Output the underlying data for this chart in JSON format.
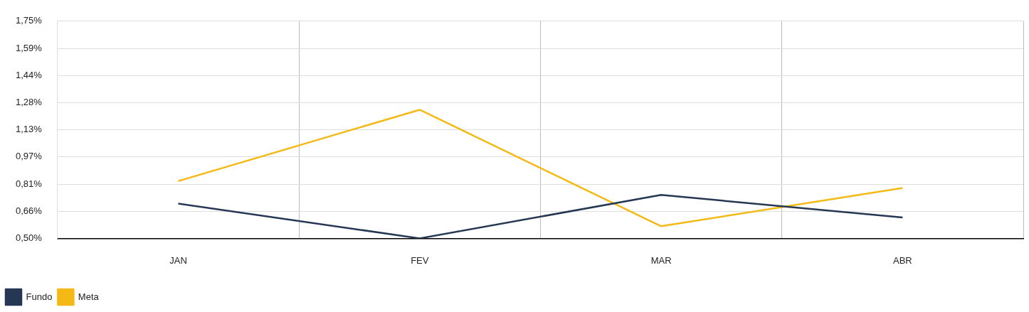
{
  "chart_data": {
    "type": "line",
    "categories": [
      "JAN",
      "FEV",
      "MAR",
      "ABR"
    ],
    "series": [
      {
        "name": "Fundo",
        "color": "#263754",
        "values": [
          0.7,
          0.5,
          0.75,
          0.62
        ]
      },
      {
        "name": "Meta",
        "color": "#f4b915",
        "values": [
          0.83,
          1.24,
          0.57,
          0.79
        ]
      }
    ],
    "ylim": [
      0.5,
      1.75
    ],
    "yticks": [
      {
        "value": 0.5,
        "label": "0,50%"
      },
      {
        "value": 0.65625,
        "label": "0,66%"
      },
      {
        "value": 0.8125,
        "label": "0,81%"
      },
      {
        "value": 0.96875,
        "label": "0,97%"
      },
      {
        "value": 1.125,
        "label": "1,13%"
      },
      {
        "value": 1.28125,
        "label": "1,28%"
      },
      {
        "value": 1.4375,
        "label": "1,44%"
      },
      {
        "value": 1.59375,
        "label": "1,59%"
      },
      {
        "value": 1.75,
        "label": "1,75%"
      }
    ],
    "grid": true,
    "legend": "bottom left",
    "marker": "none",
    "line_style": "solid"
  }
}
